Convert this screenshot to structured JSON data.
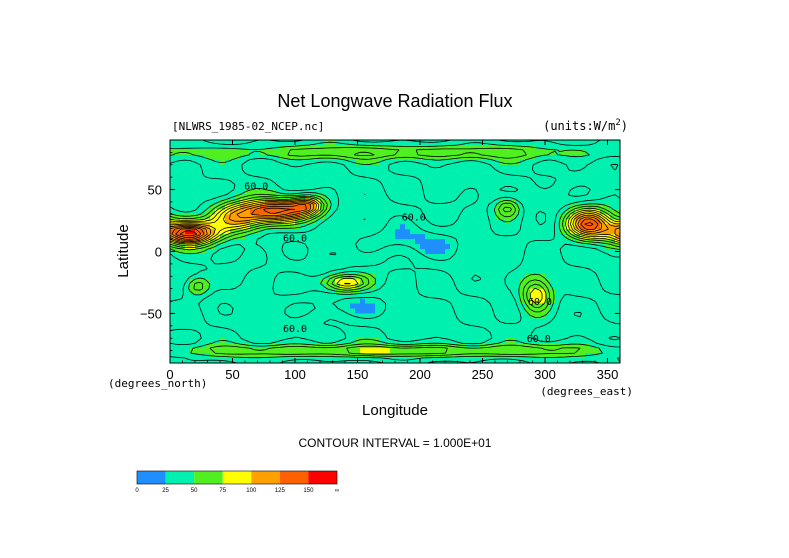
{
  "chart_data": {
    "type": "heatmap",
    "title": "Net Longwave Radiation Flux",
    "source_label": "[NLWRS_1985-02_NCEP.nc]",
    "units_label": "(units:W/m^2)",
    "xlabel": "Longitude",
    "ylabel": "Latitude",
    "x_unit_label": "(degrees_east)",
    "y_unit_label": "(degrees_north)",
    "xlim": [
      0,
      360
    ],
    "ylim": [
      -90,
      90
    ],
    "x_ticks": [
      0,
      50,
      100,
      150,
      200,
      250,
      300,
      350
    ],
    "y_ticks": [
      -50,
      0,
      50
    ],
    "contour_interval_text": "CONTOUR INTERVAL = 1.000E+01",
    "contour_label": "60.0",
    "colorbar": {
      "bins": [
        {
          "label": "0",
          "color": "#1f8fff"
        },
        {
          "label": "25",
          "color": "#00f0b0"
        },
        {
          "label": "50",
          "color": "#50f020"
        },
        {
          "label": "75",
          "color": "#ffff00"
        },
        {
          "label": "100",
          "color": "#ffa000"
        },
        {
          "label": "125",
          "color": "#ff6000"
        },
        {
          "label": "150",
          "color": "#ff0000"
        }
      ],
      "end_label": "∞"
    },
    "base_value": 38,
    "field_features": [
      {
        "lon": 15,
        "lat": 15,
        "amp": 120,
        "rlon": 22,
        "rlat": 9
      },
      {
        "lon": 55,
        "lat": 28,
        "amp": 75,
        "rlon": 22,
        "rlat": 12
      },
      {
        "lon": 85,
        "lat": 33,
        "amp": 95,
        "rlon": 22,
        "rlat": 9
      },
      {
        "lon": 110,
        "lat": 37,
        "amp": 70,
        "rlon": 14,
        "rlat": 8
      },
      {
        "lon": 335,
        "lat": 22,
        "amp": 100,
        "rlon": 18,
        "rlat": 12
      },
      {
        "lon": 270,
        "lat": 35,
        "amp": 40,
        "rlon": 10,
        "rlat": 8
      },
      {
        "lon": 140,
        "lat": -25,
        "amp": 60,
        "rlon": 18,
        "rlat": 7
      },
      {
        "lon": 22,
        "lat": -28,
        "amp": 35,
        "rlon": 10,
        "rlat": 8
      },
      {
        "lon": 293,
        "lat": -35,
        "amp": 55,
        "rlon": 12,
        "rlat": 14
      },
      {
        "lon": 180,
        "lat": 80,
        "amp": 30,
        "rlon": 180,
        "rlat": 6
      },
      {
        "lon": 180,
        "lat": -80,
        "amp": 40,
        "rlon": 180,
        "rlat": 5
      },
      {
        "lon": 180,
        "lat": 8,
        "amp": -12,
        "rlon": 70,
        "rlat": 12
      },
      {
        "lon": 130,
        "lat": -45,
        "amp": -15,
        "rlon": 40,
        "rlat": 10
      },
      {
        "lon": 320,
        "lat": 45,
        "amp": -10,
        "rlon": 40,
        "rlat": 12
      }
    ]
  }
}
